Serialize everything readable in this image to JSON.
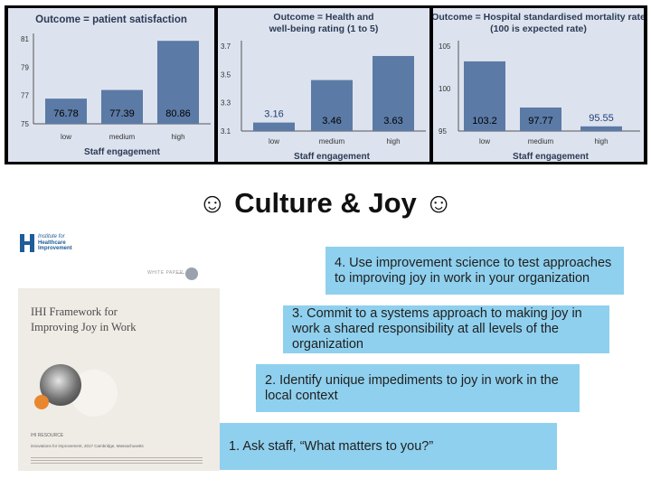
{
  "slide_title": "Culture & Joy",
  "smiley_glyph": "☺",
  "chart_data": [
    {
      "type": "bar",
      "title": "Outcome = patient satisfaction",
      "xlabel": "Staff engagement",
      "categories": [
        "low",
        "medium",
        "high"
      ],
      "values": [
        76.78,
        77.39,
        80.86
      ],
      "value_labels": [
        "76.78",
        "77.39",
        "80.86"
      ],
      "yticks": [
        "81",
        "79",
        "77",
        "75"
      ],
      "ylim": [
        75,
        81
      ],
      "bar_color": "#5b7aa6",
      "background": "#dde3ee"
    },
    {
      "type": "bar",
      "title_lines": [
        "Outcome = Health and",
        "well-being rating (1 to 5)"
      ],
      "xlabel": "Staff engagement",
      "categories": [
        "low",
        "medium",
        "high"
      ],
      "values": [
        3.16,
        3.46,
        3.63
      ],
      "value_labels": [
        "3.16",
        "3.46",
        "3.63"
      ],
      "yticks": [
        "3.7",
        "3.5",
        "3.3",
        "3.1"
      ],
      "ylim": [
        3.1,
        3.7
      ],
      "bar_color": "#5b7aa6",
      "background": "#dde3ee"
    },
    {
      "type": "bar",
      "title_lines": [
        "Outcome = Hospital standardised mortality rate",
        "(100 is expected rate)"
      ],
      "xlabel": "Staff engagement",
      "categories": [
        "low",
        "medium",
        "high"
      ],
      "values": [
        103.2,
        97.77,
        95.55
      ],
      "value_labels": [
        "103.2",
        "97.77",
        "95.55"
      ],
      "yticks": [
        "105",
        "100",
        "95"
      ],
      "ylim": [
        95,
        105
      ],
      "bar_color": "#5b7aa6",
      "background": "#dde3ee"
    }
  ],
  "cover": {
    "org_line1": "Institute for",
    "org_line2": "Healthcare",
    "org_line3": "Improvement",
    "tag": "WHITE PAPER",
    "title_line1": "IHI Framework for",
    "title_line2": "Improving Joy in Work",
    "resource_tag": "IHI RESOURCE",
    "footer_line": "innovations for improvement, 2017 Cambridge, Massachusetts",
    "accent_color": "#e8872e",
    "brand_color": "#1f5c99"
  },
  "steps": [
    "4. Use improvement science to test approaches to improving joy in work in your organization",
    "3. Commit to a systems approach to making joy in work a shared responsibility at all levels of the organization",
    "2. Identify unique impediments to joy in work in the local context",
    "1. Ask staff, “What matters to you?”"
  ],
  "step_color": "#8fd0ee"
}
